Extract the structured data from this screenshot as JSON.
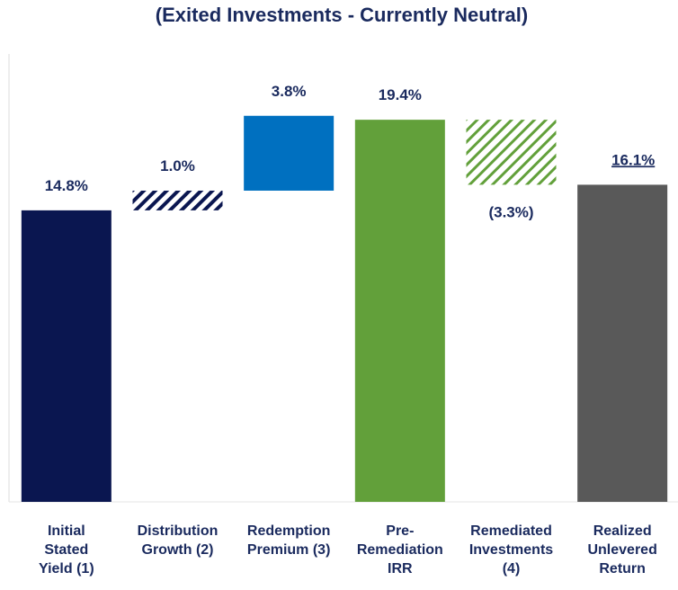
{
  "chart_data": {
    "type": "waterfall",
    "title": "(Exited Investments - Currently Neutral)",
    "categories": [
      "Initial\nStated\nYield (1)",
      "Distribution\nGrowth (2)",
      "Redemption\nPremium (3)",
      "Pre-\nRemediation\nIRR",
      "Remediated\nInvestments\n(4)",
      "Realized\nUnlevered\nReturn"
    ],
    "values": [
      14.8,
      1.0,
      3.8,
      19.4,
      -3.3,
      16.1
    ],
    "value_labels": [
      "14.8%",
      "1.0%",
      "3.8%",
      "19.4%",
      "(3.3%)",
      "16.1%"
    ],
    "totals": [
      false,
      false,
      false,
      true,
      false,
      true
    ],
    "colors": [
      "#0a1650",
      "#0a1650",
      "#0070c0",
      "#62a03a",
      "#62a03a",
      "#595959"
    ],
    "hatch": [
      false,
      true,
      false,
      false,
      true,
      false
    ],
    "ylim": [
      0,
      20
    ]
  }
}
